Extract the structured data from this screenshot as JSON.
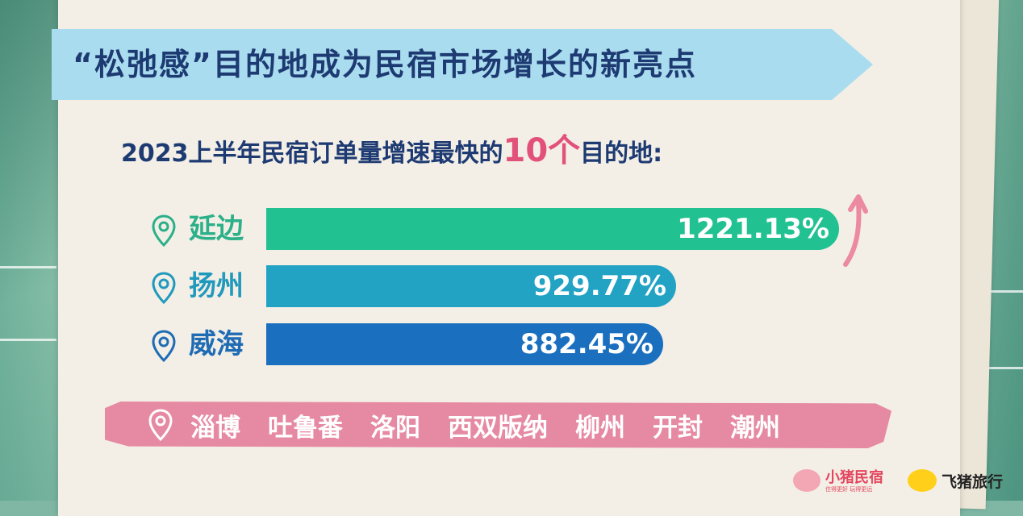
{
  "header": {
    "title": "“松弛感”目的地成为民宿市场增长的新亮点"
  },
  "subtitle": {
    "prefix": "2023上半年民宿订单量增速最快的",
    "highlight": "10个",
    "suffix": "目的地:"
  },
  "chart_data": {
    "type": "bar",
    "orientation": "horizontal",
    "categories": [
      "延边",
      "扬州",
      "威海"
    ],
    "values": [
      1221.13,
      929.77,
      882.45
    ],
    "value_labels": [
      "1221.13%",
      "929.77%",
      "882.45%"
    ],
    "unit": "%",
    "bar_colors": [
      "#22c191",
      "#23a3c4",
      "#1a6fbf"
    ],
    "pin_colors": [
      "#2bb08a",
      "#2199bd",
      "#1f6cb5"
    ]
  },
  "others": {
    "items": [
      "淄博",
      "吐鲁番",
      "洛阳",
      "西双版纳",
      "柳州",
      "开封",
      "潮州"
    ]
  },
  "logos": {
    "xiaozhu": {
      "name": "小猪民宿",
      "tagline": "住得更好 玩得更远"
    },
    "fliggy": {
      "name": "飞猪旅行"
    }
  },
  "icons": {
    "pin": "location-pin-icon",
    "arrow": "up-arrow-icon"
  },
  "colors": {
    "title": "#1d3a72",
    "highlight": "#e2517a",
    "ribbon": "#a9dcee",
    "others_band": "#e68aa3",
    "arrow": "#ec8aa2"
  }
}
